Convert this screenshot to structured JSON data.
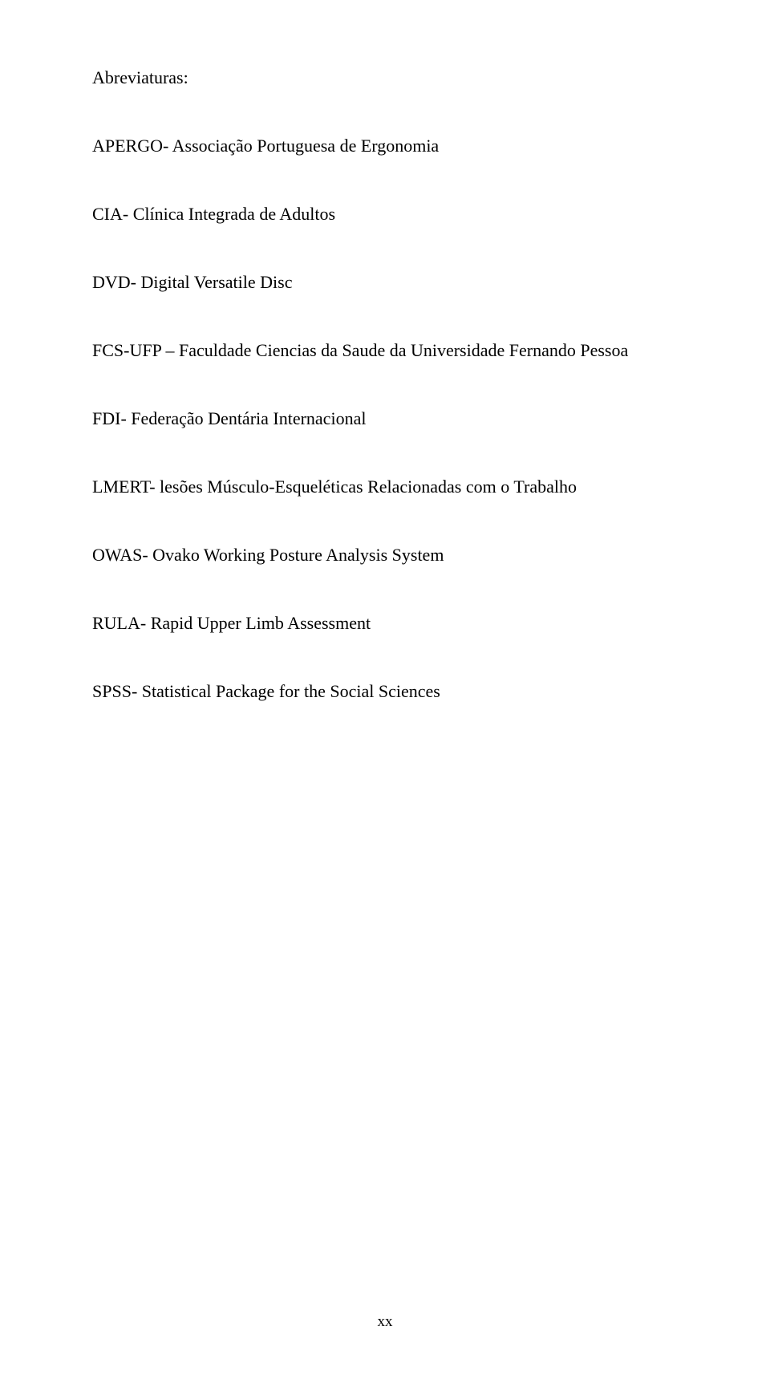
{
  "heading": "Abreviaturas:",
  "entries": [
    "APERGO- Associação Portuguesa de Ergonomia",
    "CIA- Clínica Integrada de Adultos",
    "DVD- Digital Versatile Disc",
    "FCS-UFP – Faculdade Ciencias da Saude da Universidade Fernando Pessoa",
    "FDI- Federação Dentária Internacional",
    "LMERT- lesões Músculo-Esqueléticas Relacionadas com o Trabalho",
    "OWAS- Ovako Working Posture Analysis System",
    "RULA- Rapid Upper Limb Assessment",
    "SPSS- Statistical Package for the Social Sciences"
  ],
  "page_number": "xx"
}
